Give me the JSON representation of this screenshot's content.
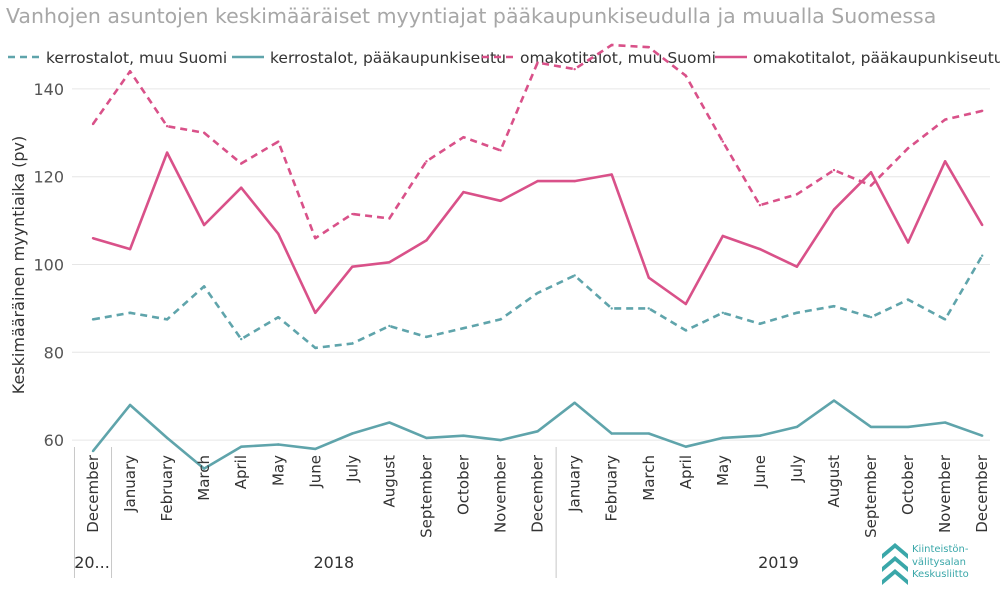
{
  "chart_data": {
    "type": "line",
    "title": "Vanhojen asuntojen keskimääräiset myyntiajat pääkaupunkiseudulla ja muualla Suomessa",
    "ylabel": "Keskimääräinen myyntiaika (pv)",
    "xlabel": "",
    "ylim": [
      50,
      150
    ],
    "yticks": [
      60,
      80,
      100,
      120,
      140
    ],
    "grid": true,
    "legend": "top",
    "categories": [
      "December",
      "January",
      "February",
      "March",
      "April",
      "May",
      "June",
      "July",
      "August",
      "September",
      "October",
      "November",
      "December",
      "January",
      "February",
      "March",
      "April",
      "May",
      "June",
      "July",
      "August",
      "September",
      "October",
      "November",
      "December"
    ],
    "year_groups": [
      {
        "label": "20...",
        "count": 1
      },
      {
        "label": "2018",
        "count": 12
      },
      {
        "label": "2019",
        "count": 12
      }
    ],
    "series": [
      {
        "name": "kerrostalot, muu Suomi",
        "color": "#5fa4ab",
        "dashed": true,
        "values": [
          87.5,
          89,
          87.5,
          95,
          83,
          88,
          81,
          82,
          86,
          83.5,
          85.5,
          87.5,
          93.5,
          97.5,
          90,
          90,
          85,
          89,
          86.5,
          89,
          90.5,
          88,
          92,
          87.5,
          102
        ]
      },
      {
        "name": "kerrostalot, pääkaupunkiseutu",
        "color": "#5fa4ab",
        "dashed": false,
        "values": [
          57.5,
          68,
          60.5,
          53.5,
          58.5,
          59,
          58,
          61.5,
          64,
          60.5,
          61,
          60,
          62,
          68.5,
          61.5,
          61.5,
          58.5,
          60.5,
          61,
          63,
          69,
          63,
          63,
          64,
          61
        ]
      },
      {
        "name": "omakotitalot, muu Suomi",
        "color": "#d95189",
        "dashed": true,
        "values": [
          132,
          144,
          131.5,
          130,
          123,
          128,
          106,
          111.5,
          110.5,
          123.5,
          129,
          126,
          146,
          144.5,
          150,
          149.5,
          143,
          128,
          113.5,
          116,
          121.5,
          118,
          126.5,
          133,
          135
        ]
      },
      {
        "name": "omakotitalot, pääkaupunkiseutu",
        "color": "#d95189",
        "dashed": false,
        "values": [
          106,
          103.5,
          125.5,
          109,
          117.5,
          107,
          89,
          99.5,
          100.5,
          105.5,
          116.5,
          114.5,
          119,
          119,
          120.5,
          97,
          91,
          106.5,
          103.5,
          99.5,
          112.5,
          121,
          105,
          123.5,
          109
        ]
      }
    ]
  },
  "logo": {
    "lines": [
      "Kiinteistön-",
      "välitysalan",
      "Keskusliitto"
    ],
    "color": "#3aa7a9"
  }
}
